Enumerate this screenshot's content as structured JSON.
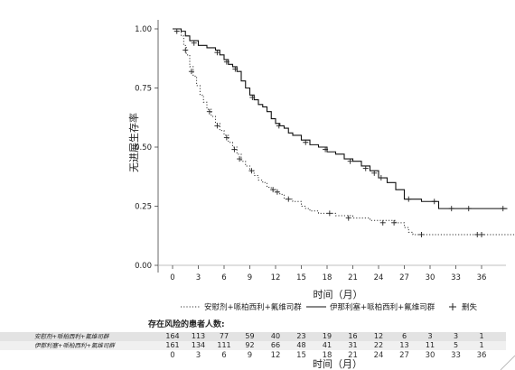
{
  "chart_data": {
    "type": "line",
    "ylabel": "无进展生存率",
    "xlabel": "时间（月）",
    "xlim": [
      -2,
      40
    ],
    "ylim": [
      0,
      1
    ],
    "yticks": [
      "0.00",
      "0.25",
      "0.50",
      "0.75",
      "1.00"
    ],
    "xticks": [
      "0",
      "3",
      "6",
      "9",
      "12",
      "15",
      "18",
      "21",
      "24",
      "27",
      "30",
      "33",
      "36"
    ],
    "grid": false,
    "series": [
      {
        "name": "安慰剂+哌柏西利+氟维司群",
        "style": "dotted",
        "points": [
          [
            0,
            1.0
          ],
          [
            1,
            0.97
          ],
          [
            1.3,
            0.93
          ],
          [
            1.6,
            0.89
          ],
          [
            2,
            0.84
          ],
          [
            2.4,
            0.8
          ],
          [
            2.8,
            0.76
          ],
          [
            3.2,
            0.72
          ],
          [
            3.6,
            0.69
          ],
          [
            4,
            0.66
          ],
          [
            4.5,
            0.63
          ],
          [
            5,
            0.6
          ],
          [
            5.5,
            0.57
          ],
          [
            6,
            0.55
          ],
          [
            6.5,
            0.52
          ],
          [
            7,
            0.5
          ],
          [
            7.5,
            0.47
          ],
          [
            8,
            0.44
          ],
          [
            8.5,
            0.42
          ],
          [
            9,
            0.4
          ],
          [
            9.5,
            0.38
          ],
          [
            10,
            0.36
          ],
          [
            10.5,
            0.35
          ],
          [
            11,
            0.33
          ],
          [
            11.5,
            0.32
          ],
          [
            12,
            0.31
          ],
          [
            12.5,
            0.3
          ],
          [
            13,
            0.28
          ],
          [
            14,
            0.27
          ],
          [
            15,
            0.25
          ],
          [
            15.5,
            0.24
          ],
          [
            16,
            0.23
          ],
          [
            17,
            0.22
          ],
          [
            18,
            0.22
          ],
          [
            19,
            0.21
          ],
          [
            21,
            0.2
          ],
          [
            23,
            0.19
          ],
          [
            26,
            0.18
          ],
          [
            27,
            0.16
          ],
          [
            27.5,
            0.14
          ],
          [
            28,
            0.13
          ],
          [
            40,
            0.13
          ]
        ],
        "censor": [
          [
            1.5,
            0.91
          ],
          [
            2.2,
            0.82
          ],
          [
            4.3,
            0.65
          ],
          [
            5.2,
            0.59
          ],
          [
            6.3,
            0.54
          ],
          [
            7.2,
            0.49
          ],
          [
            7.8,
            0.45
          ],
          [
            9.2,
            0.4
          ],
          [
            11.7,
            0.32
          ],
          [
            12.2,
            0.31
          ],
          [
            13.5,
            0.28
          ],
          [
            18.3,
            0.22
          ],
          [
            20.5,
            0.2
          ],
          [
            24.5,
            0.18
          ],
          [
            25.8,
            0.18
          ],
          [
            29,
            0.13
          ],
          [
            35.5,
            0.13
          ],
          [
            36,
            0.13
          ]
        ]
      },
      {
        "name": "伊那利塞+哌柏西利+氟维司群",
        "style": "solid",
        "points": [
          [
            0,
            1.0
          ],
          [
            1,
            0.99
          ],
          [
            1.5,
            0.97
          ],
          [
            2,
            0.95
          ],
          [
            3,
            0.93
          ],
          [
            4,
            0.92
          ],
          [
            5,
            0.91
          ],
          [
            5.5,
            0.89
          ],
          [
            6,
            0.87
          ],
          [
            6.5,
            0.85
          ],
          [
            7,
            0.84
          ],
          [
            7.5,
            0.82
          ],
          [
            8,
            0.78
          ],
          [
            8.5,
            0.75
          ],
          [
            9,
            0.72
          ],
          [
            9.5,
            0.7
          ],
          [
            10,
            0.68
          ],
          [
            10.5,
            0.67
          ],
          [
            11,
            0.65
          ],
          [
            11.5,
            0.62
          ],
          [
            12,
            0.6
          ],
          [
            12.5,
            0.59
          ],
          [
            13,
            0.58
          ],
          [
            13.5,
            0.56
          ],
          [
            14,
            0.55
          ],
          [
            15,
            0.53
          ],
          [
            16,
            0.51
          ],
          [
            17,
            0.5
          ],
          [
            18,
            0.48
          ],
          [
            19,
            0.47
          ],
          [
            20,
            0.45
          ],
          [
            21,
            0.44
          ],
          [
            22,
            0.42
          ],
          [
            23,
            0.4
          ],
          [
            24,
            0.37
          ],
          [
            25,
            0.35
          ],
          [
            26,
            0.32
          ],
          [
            27,
            0.28
          ],
          [
            28,
            0.28
          ],
          [
            29,
            0.27
          ],
          [
            30,
            0.27
          ],
          [
            31,
            0.24
          ],
          [
            39,
            0.24
          ]
        ],
        "censor": [
          [
            0.5,
            0.99
          ],
          [
            2.5,
            0.94
          ],
          [
            5.2,
            0.9
          ],
          [
            6.3,
            0.86
          ],
          [
            7.3,
            0.83
          ],
          [
            9.3,
            0.71
          ],
          [
            12.4,
            0.59
          ],
          [
            15.5,
            0.52
          ],
          [
            17.8,
            0.49
          ],
          [
            20.7,
            0.44
          ],
          [
            22.5,
            0.41
          ],
          [
            23.5,
            0.39
          ],
          [
            24.3,
            0.37
          ],
          [
            27.5,
            0.28
          ],
          [
            30.5,
            0.27
          ],
          [
            32.5,
            0.24
          ],
          [
            34.5,
            0.24
          ],
          [
            38.5,
            0.24
          ]
        ]
      }
    ],
    "legend": {
      "position": "bottom",
      "items": [
        {
          "label": "安慰剂+哌柏西利+氟维司群",
          "marker": "dotted-line"
        },
        {
          "label": "伊那利塞+哌柏西利+氟维司群",
          "marker": "solid-line"
        },
        {
          "label": "删失",
          "marker": "plus"
        }
      ]
    }
  },
  "risk_table": {
    "title": "存在风险的患者人数:",
    "rows": [
      {
        "label": "安慰剂+哌柏西利+氟维司群",
        "values": [
          "164",
          "113",
          "77",
          "59",
          "40",
          "23",
          "19",
          "16",
          "12",
          "6",
          "3",
          "3",
          "1"
        ]
      },
      {
        "label": "伊那利塞+哌柏西利+氟维司群",
        "values": [
          "161",
          "134",
          "111",
          "92",
          "66",
          "48",
          "41",
          "31",
          "22",
          "13",
          "11",
          "5",
          "1"
        ]
      }
    ],
    "xticks": [
      "0",
      "3",
      "6",
      "9",
      "12",
      "15",
      "18",
      "21",
      "24",
      "27",
      "30",
      "33",
      "36"
    ],
    "xtitle": "时间（月）"
  }
}
